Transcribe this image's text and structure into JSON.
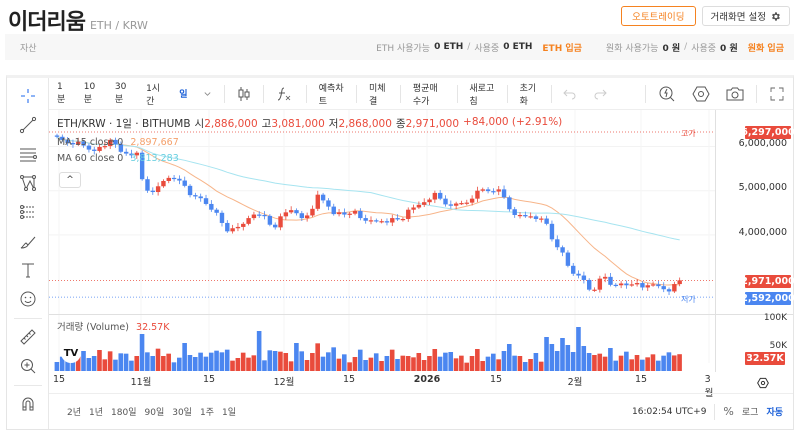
{
  "header": {
    "coin_name": "이더리움",
    "pair": "ETH / KRW",
    "auto_trading_label": "오토트레이딩",
    "settings_label": "거래화면 설정"
  },
  "assets": {
    "label": "자산",
    "eth_available_label": "ETH 사용가능",
    "eth_available_value": "0 ETH",
    "eth_in_use_label": "사용중",
    "eth_in_use_value": "0 ETH",
    "eth_deposit_label": "ETH 입금",
    "krw_available_label": "원화 사용가능",
    "krw_available_value": "0 원",
    "krw_in_use_label": "사용중",
    "krw_in_use_value": "0 원",
    "krw_deposit_label": "원화 입금"
  },
  "toolbar": {
    "intervals": [
      "1분",
      "10분",
      "30분",
      "1시간",
      "일"
    ],
    "active_interval": "일",
    "buttons": [
      "예측차트",
      "미체결",
      "평균매수가",
      "새로고침",
      "초기화"
    ]
  },
  "legend": {
    "symbol": "ETH/KRW · 1일 · BITHUMB",
    "open_label": "시",
    "open": "2,886,000",
    "high_label": "고",
    "high": "3,081,000",
    "low_label": "저",
    "low": "2,868,000",
    "close_label": "종",
    "close": "2,971,000",
    "change": "+84,000 (+2.91%)",
    "ma15_label": "MA 15 close 0",
    "ma15_value": "2,897,667",
    "ma60_label": "MA 60 close 0",
    "ma60_value": "3,813,283",
    "collapse": "^"
  },
  "price_axis": {
    "ticks": [
      "6,000,000",
      "5,000,000",
      "4,000,000"
    ],
    "high_label": "고가",
    "high_tag": "6,297,000",
    "low_label": "저가",
    "low_tag": "2,592,000",
    "last_tag": "2,971,000"
  },
  "volume": {
    "label": "거래량 (Volume)",
    "value": "32.57K",
    "ticks": [
      "100K",
      "50K"
    ],
    "tag": "32.57K"
  },
  "time_axis": {
    "labels": [
      {
        "text": "15",
        "x": 10,
        "bold": false
      },
      {
        "text": "11월",
        "x": 92,
        "bold": false
      },
      {
        "text": "15",
        "x": 160,
        "bold": false
      },
      {
        "text": "12월",
        "x": 235,
        "bold": false
      },
      {
        "text": "15",
        "x": 300,
        "bold": false
      },
      {
        "text": "2026",
        "x": 378,
        "bold": true
      },
      {
        "text": "15",
        "x": 447,
        "bold": false
      },
      {
        "text": "2월",
        "x": 526,
        "bold": false
      },
      {
        "text": "15",
        "x": 592,
        "bold": false
      },
      {
        "text": "3월",
        "x": 660,
        "bold": false
      }
    ]
  },
  "bottom": {
    "ranges": [
      "2년",
      "1년",
      "180일",
      "90일",
      "30일",
      "1주",
      "1일"
    ],
    "clock": "16:02:54 UTC+9",
    "percent": "%",
    "log": "로그",
    "auto": "자동"
  },
  "colors": {
    "up": "#e94b3c",
    "down": "#4b86f0",
    "ma15": "#f7b58a",
    "ma60": "#a6e4f0",
    "accent": "#f58220",
    "active": "#1d61d8"
  },
  "chart_data": {
    "type": "candlestick",
    "title": "ETH/KRW · 1일 · BITHUMB",
    "y_range": [
      2400000,
      6500000
    ],
    "y_ticks": [
      4000000,
      5000000,
      6000000
    ],
    "x_labels": [
      "15",
      "11월",
      "15",
      "12월",
      "15",
      "2026",
      "15",
      "2월",
      "15",
      "3월"
    ],
    "ohlc_close_approx": [
      6220000,
      6150000,
      6080000,
      6050000,
      6110000,
      6020000,
      5930000,
      5900000,
      5990000,
      6010000,
      6150000,
      6050000,
      5880000,
      5840000,
      5800000,
      5860000,
      5260000,
      5000000,
      4970000,
      5100000,
      5220000,
      5290000,
      5270000,
      5230000,
      5110000,
      4900000,
      4870000,
      4830000,
      4700000,
      4570000,
      4500000,
      4270000,
      4080000,
      4150000,
      4180000,
      4250000,
      4380000,
      4460000,
      4450000,
      4430000,
      4230000,
      4170000,
      4420000,
      4510000,
      4560000,
      4490000,
      4380000,
      4440000,
      4590000,
      4910000,
      4780000,
      4640000,
      4470000,
      4510000,
      4460000,
      4480000,
      4540000,
      4380000,
      4320000,
      4330000,
      4310000,
      4310000,
      4280000,
      4380000,
      4350000,
      4360000,
      4570000,
      4620000,
      4680000,
      4740000,
      4800000,
      4950000,
      4820000,
      4690000,
      4660000,
      4710000,
      4720000,
      4730000,
      4820000,
      5000000,
      5030000,
      4990000,
      4980000,
      5030000,
      4850000,
      4580000,
      4450000,
      4450000,
      4420000,
      4420000,
      4360000,
      4370000,
      4250000,
      3900000,
      3720000,
      3600000,
      3300000,
      3120000,
      3080000,
      2980000,
      2760000,
      2760000,
      3010000,
      3050000,
      2870000,
      2860000,
      2900000,
      2860000,
      2880000,
      2910000,
      2810000,
      2860000,
      2880000,
      2840000,
      2770000,
      2720000,
      2887000,
      2971000
    ],
    "ma15_value": 2897667,
    "ma60_value": 3813283,
    "volume": {
      "last": "32.57K",
      "y_ticks": [
        "50K",
        "100K"
      ]
    }
  }
}
